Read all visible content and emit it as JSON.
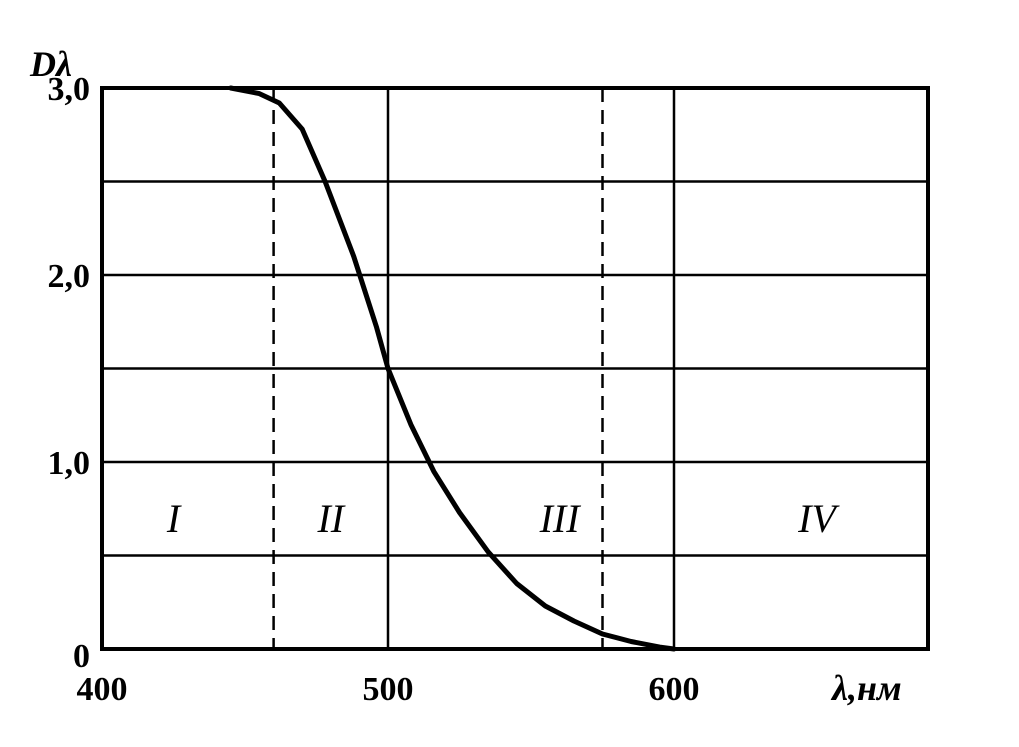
{
  "chart_data": {
    "type": "line",
    "title": "",
    "xlabel": "λ,нм",
    "ylabel": "Dλ",
    "xlim": [
      400,
      585
    ],
    "ylim": [
      0,
      3.0
    ],
    "x_ticks": [
      {
        "value": 400,
        "label": "400"
      },
      {
        "value": 500,
        "label": "500"
      },
      {
        "value": 600,
        "label": "600"
      }
    ],
    "y_ticks": [
      {
        "value": 0,
        "label": "0"
      },
      {
        "value": 1.0,
        "label": "1,0"
      },
      {
        "value": 2.0,
        "label": "2,0"
      },
      {
        "value": 3.0,
        "label": "3,0"
      }
    ],
    "grid": {
      "horizontal": [
        0.5,
        1.0,
        1.5,
        2.0,
        2.5,
        3.0
      ],
      "vertical_solid": [
        500,
        600
      ],
      "vertical_dashed": [
        460,
        575
      ]
    },
    "regions": [
      {
        "label": "I",
        "x": 425,
        "y": 0.7
      },
      {
        "label": "II",
        "x": 480,
        "y": 0.7
      },
      {
        "label": "III",
        "x": 560,
        "y": 0.7
      },
      {
        "label": "IV",
        "x": 650,
        "y": 0.7
      }
    ],
    "series": [
      {
        "x": [
          445,
          455,
          462,
          470,
          478,
          488,
          496,
          500,
          508,
          516,
          525,
          535,
          545,
          555,
          565,
          575,
          585,
          595,
          600
        ],
        "y": [
          3.0,
          2.97,
          2.92,
          2.78,
          2.5,
          2.1,
          1.72,
          1.5,
          1.2,
          0.95,
          0.73,
          0.52,
          0.35,
          0.23,
          0.15,
          0.08,
          0.04,
          0.01,
          0.0
        ]
      }
    ]
  }
}
